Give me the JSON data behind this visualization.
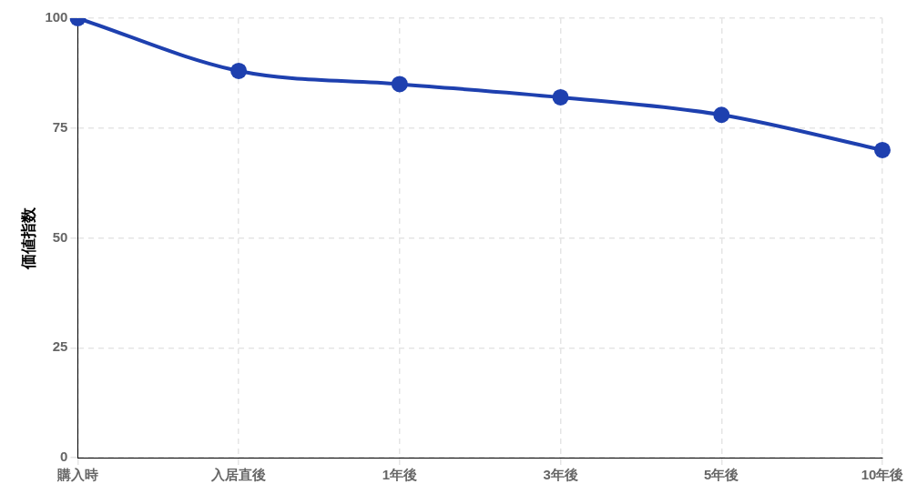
{
  "chart_data": {
    "type": "line",
    "ylabel": "価値指数",
    "categories": [
      "購入時",
      "入居直後",
      "1年後",
      "3年後",
      "5年後",
      "10年後"
    ],
    "series": [
      {
        "color": "#1e40af",
        "values": [
          100,
          88,
          85,
          82,
          78,
          70
        ]
      }
    ],
    "ylim": [
      0,
      100
    ],
    "yticks": [
      0,
      25,
      50,
      75,
      100
    ],
    "grid": true,
    "legend": false,
    "marker": "circle",
    "line_style": "solid"
  }
}
